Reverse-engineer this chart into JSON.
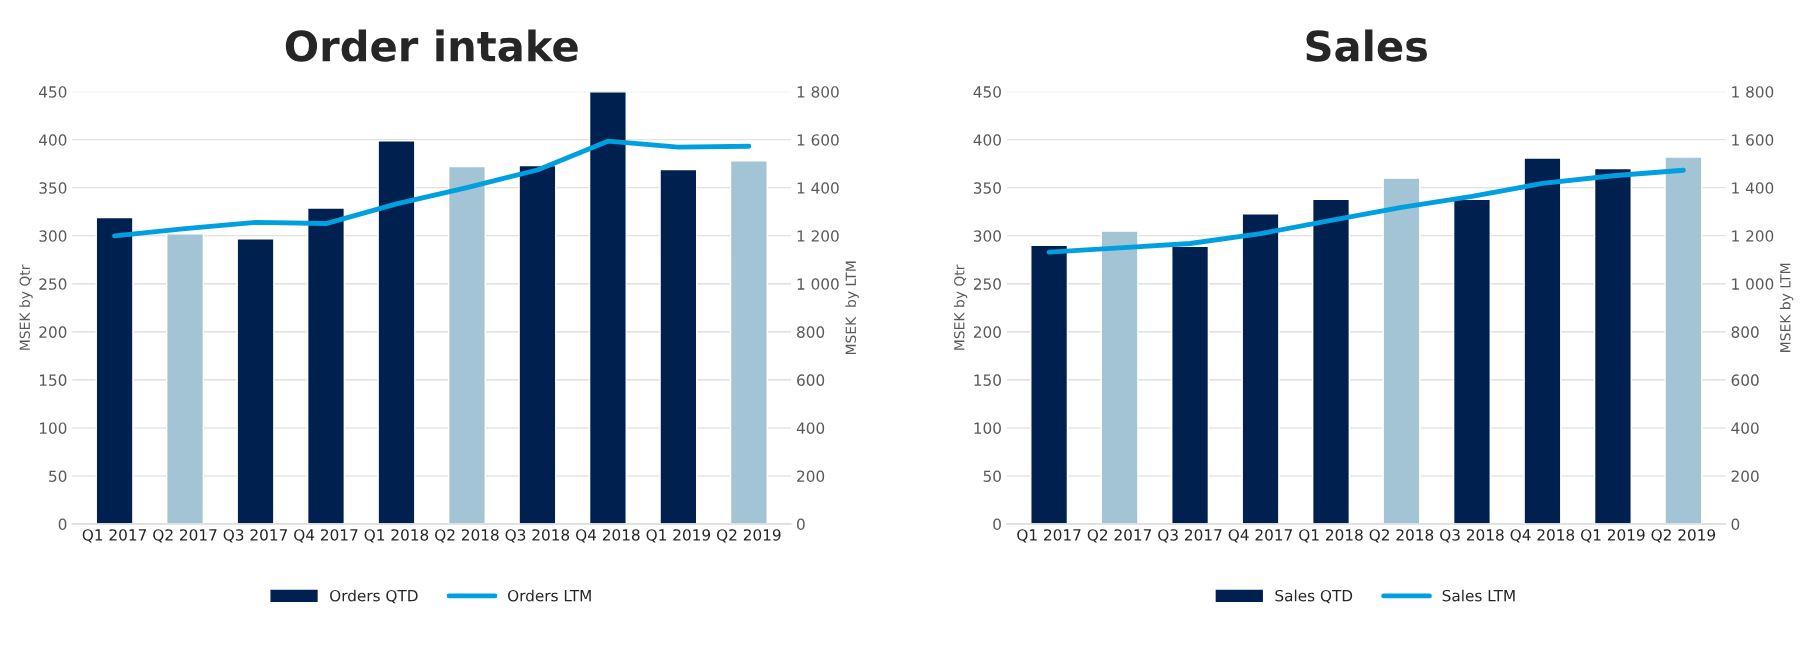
{
  "chart_data": [
    {
      "type": "bar",
      "title": "Order intake",
      "ylabel": "MSEK by Qtr",
      "y2label": "MSEK  by LTM",
      "categories": [
        "Q1 2017",
        "Q2 2017",
        "Q3 2017",
        "Q4 2017",
        "Q1 2018",
        "Q2 2018",
        "Q3 2018",
        "Q4 2018",
        "Q1 2019",
        "Q2 2019"
      ],
      "series": [
        {
          "name": "Orders QTD",
          "color": "#002050",
          "colors": [
            "#002050",
            "#a3c4d4",
            "#002050",
            "#002050",
            "#002050",
            "#a3c4d4",
            "#002050",
            "#002050",
            "#002050",
            "#a3c4d4"
          ],
          "values": [
            319,
            302,
            297,
            329,
            399,
            372,
            373,
            450,
            369,
            378
          ]
        },
        {
          "name": "Orders LTM",
          "type": "line",
          "axis": "y2",
          "color": "#00a0e0",
          "values": [
            1200,
            1230,
            1256,
            1251,
            1333,
            1401,
            1474,
            1594,
            1569,
            1573
          ]
        }
      ],
      "ylim": [
        0,
        450
      ],
      "yticks": [
        0,
        50,
        100,
        150,
        200,
        250,
        300,
        350,
        400,
        450
      ],
      "y2lim": [
        0,
        1800
      ],
      "y2ticks": [
        0,
        {
          "value": 200,
          "label": "200"
        },
        {
          "value": 400,
          "label": "400"
        },
        {
          "value": 600,
          "label": "600"
        },
        {
          "value": 800,
          "label": "800"
        },
        {
          "value": 1000,
          "label": "1 000"
        },
        {
          "value": 1200,
          "label": "1 200"
        },
        {
          "value": 1400,
          "label": "1 400"
        },
        {
          "value": 1600,
          "label": "1 600"
        },
        {
          "value": 1800,
          "label": "1 800"
        }
      ],
      "grid": "y",
      "legend": "bottom",
      "marker": "none",
      "line_style": "solid"
    },
    {
      "type": "bar",
      "title": "Sales",
      "ylabel": "MSEK by Qtr",
      "y2label": "MSEK by LTM",
      "categories": [
        "Q1 2017",
        "Q2 2017",
        "Q3 2017",
        "Q4 2017",
        "Q1 2018",
        "Q2 2018",
        "Q3 2018",
        "Q4 2018",
        "Q1 2019",
        "Q2 2019"
      ],
      "series": [
        {
          "name": "Sales QTD",
          "color": "#002050",
          "colors": [
            "#002050",
            "#a3c4d4",
            "#002050",
            "#002050",
            "#002050",
            "#a3c4d4",
            "#002050",
            "#002050",
            "#002050",
            "#a3c4d4"
          ],
          "values": [
            290,
            305,
            289,
            323,
            338,
            360,
            338,
            381,
            370,
            382
          ]
        },
        {
          "name": "Sales LTM",
          "type": "line",
          "axis": "y2",
          "color": "#00a0e0",
          "values": [
            1132,
            1150,
            1168,
            1209,
            1264,
            1318,
            1364,
            1418,
            1450,
            1473
          ]
        }
      ],
      "ylim": [
        0,
        450
      ],
      "yticks": [
        0,
        50,
        100,
        150,
        200,
        250,
        300,
        350,
        400,
        450
      ],
      "y2lim": [
        0,
        1800
      ],
      "y2ticks": [
        0,
        {
          "value": 200,
          "label": "200"
        },
        {
          "value": 400,
          "label": "400"
        },
        {
          "value": 600,
          "label": "600"
        },
        {
          "value": 800,
          "label": "800"
        },
        {
          "value": 1000,
          "label": "1 000"
        },
        {
          "value": 1200,
          "label": "1 200"
        },
        {
          "value": 1400,
          "label": "1 400"
        },
        {
          "value": 1600,
          "label": "1 600"
        },
        {
          "value": 1800,
          "label": "1 800"
        }
      ],
      "grid": "y",
      "legend": "bottom",
      "marker": "none",
      "line_style": "solid"
    }
  ]
}
